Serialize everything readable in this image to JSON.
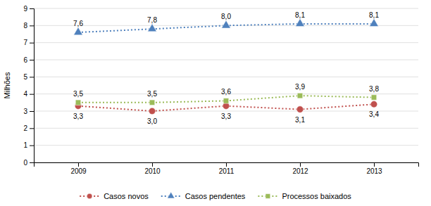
{
  "chart_data": {
    "type": "line",
    "y_label": "Milhões",
    "x": [
      2009,
      2010,
      2011,
      2012,
      2013
    ],
    "xlim": [
      2008.4,
      2013.6
    ],
    "xticks": [
      2009,
      2010,
      2011,
      2012,
      2013
    ],
    "ylim": [
      0,
      9
    ],
    "yticks": [
      0,
      1,
      2,
      3,
      4,
      5,
      6,
      7,
      8,
      9
    ],
    "grid": true,
    "legend": "bottom",
    "data_labels": true,
    "series": [
      {
        "name": "Casos novos",
        "color": "#c0504d",
        "marker": "circle",
        "line_style": "dotted",
        "values": [
          3.3,
          3.0,
          3.3,
          3.1,
          3.4
        ],
        "value_labels": [
          "3,3",
          "3,0",
          "3,3",
          "3,1",
          "3,4"
        ]
      },
      {
        "name": "Casos pendentes",
        "color": "#4f81bd",
        "marker": "triangle",
        "line_style": "dotted",
        "values": [
          7.6,
          7.8,
          8.0,
          8.1,
          8.1
        ],
        "value_labels": [
          "7,6",
          "7,8",
          "8,0",
          "8,1",
          "8,1"
        ]
      },
      {
        "name": "Processos baixados",
        "color": "#9bbb59",
        "marker": "square",
        "line_style": "dotted",
        "values": [
          3.5,
          3.5,
          3.6,
          3.9,
          3.8
        ],
        "value_labels": [
          "3,5",
          "3,5",
          "3,6",
          "3,9",
          "3,8"
        ]
      }
    ]
  }
}
